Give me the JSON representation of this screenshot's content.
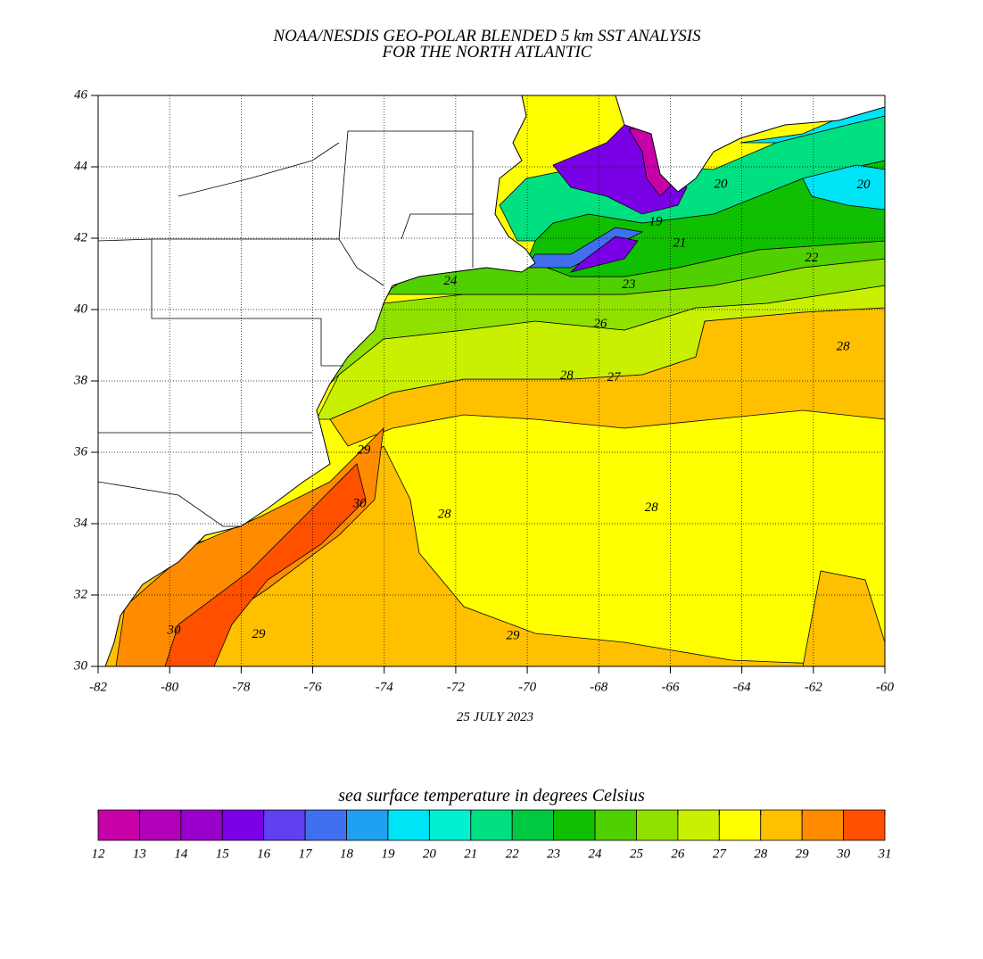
{
  "title": [
    "NOAA/NESDIS GEO-POLAR BLENDED 5 km SST ANALYSIS",
    "FOR THE NORTH ATLANTIC"
  ],
  "map": {
    "xlim": [
      -82,
      -60
    ],
    "ylim": [
      30,
      46
    ],
    "xticks": [
      -82,
      -80,
      -78,
      -76,
      -74,
      -72,
      -70,
      -68,
      -66,
      -64,
      -62,
      -60
    ],
    "yticks": [
      30,
      32,
      34,
      36,
      38,
      40,
      42,
      44,
      46
    ],
    "grid": true
  },
  "date": "25 JULY 2023",
  "contour_labels": [
    {
      "value": 29,
      "lon": -74.57,
      "lat": 36.05
    },
    {
      "value": 30,
      "lon": -74.69,
      "lat": 34.55
    },
    {
      "value": 28,
      "lon": -72.32,
      "lat": 34.25
    },
    {
      "value": 28,
      "lon": -66.53,
      "lat": 34.43
    },
    {
      "value": 29,
      "lon": -70.4,
      "lat": 30.85
    },
    {
      "value": 30,
      "lon": -79.88,
      "lat": 31.0
    },
    {
      "value": 29,
      "lon": -77.51,
      "lat": 30.88
    },
    {
      "value": 28,
      "lon": -68.9,
      "lat": 38.13
    },
    {
      "value": 27,
      "lon": -67.58,
      "lat": 38.08
    },
    {
      "value": 26,
      "lon": -67.96,
      "lat": 39.58
    },
    {
      "value": 28,
      "lon": -61.17,
      "lat": 38.95
    },
    {
      "value": 24,
      "lon": -72.15,
      "lat": 40.78
    },
    {
      "value": 23,
      "lon": -67.16,
      "lat": 40.68
    },
    {
      "value": 22,
      "lon": -62.05,
      "lat": 41.43
    },
    {
      "value": 21,
      "lon": -65.74,
      "lat": 41.85
    },
    {
      "value": 20,
      "lon": -64.59,
      "lat": 43.5
    },
    {
      "value": 19,
      "lon": -66.41,
      "lat": 42.45
    },
    {
      "value": 20,
      "lon": -60.6,
      "lat": 43.48
    }
  ],
  "colorbar": {
    "title": "sea surface temperature in degrees Celsius",
    "ticks": [
      12,
      13,
      14,
      15,
      16,
      17,
      18,
      19,
      20,
      21,
      22,
      23,
      24,
      25,
      26,
      27,
      28,
      29,
      30,
      31
    ],
    "colors": [
      "#c800a8",
      "#b000b8",
      "#9a00cc",
      "#7a00e6",
      "#6040f0",
      "#4070f0",
      "#20a0f0",
      "#00e4f8",
      "#00f0d0",
      "#00e080",
      "#00c840",
      "#10c000",
      "#50d000",
      "#90e000",
      "#c8f000",
      "#ffff00",
      "#ffc000",
      "#ff8c00",
      "#ff5000"
    ]
  }
}
